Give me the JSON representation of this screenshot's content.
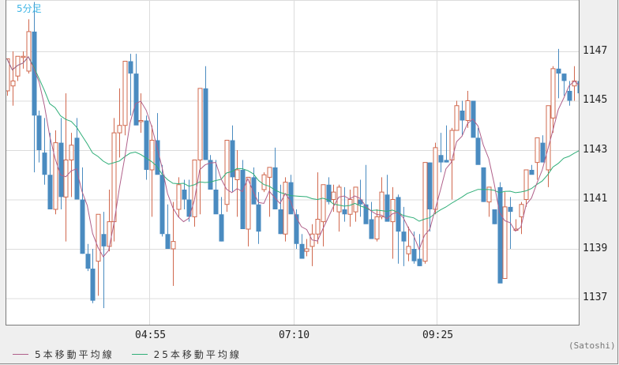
{
  "chart": {
    "timeframe_label": "5分足",
    "credit": "(Satoshi)",
    "colors": {
      "up": "#d0684e",
      "down": "#4a8bc0",
      "ma5": "#b0608a",
      "ma25": "#2fae78",
      "grid": "#dcdcdc",
      "timeframe": "#3fb6e6"
    },
    "y_axis": {
      "ticks": [
        "1147",
        "1145",
        "1143",
        "1141",
        "1139",
        "1137"
      ]
    },
    "x_axis": {
      "ticks": [
        "04:55",
        "07:10",
        "09:25"
      ]
    },
    "legend": [
      {
        "label": "5本移動平均線",
        "color": "#b0608a"
      },
      {
        "label": "25本移動平均線",
        "color": "#2fae78"
      }
    ]
  },
  "chart_data": {
    "type": "candlestick",
    "title": "5分足",
    "xlabel": "",
    "ylabel": "",
    "ylim": [
      1135.9,
      1149.1
    ],
    "y_ticks": [
      1137,
      1139,
      1141,
      1143,
      1145,
      1147
    ],
    "x_tick_labels": [
      "04:55",
      "07:10",
      "09:25"
    ],
    "grid": true,
    "legend_position": "bottom",
    "series": [
      {
        "name": "5本移動平均線",
        "type": "line",
        "period": 5
      },
      {
        "name": "25本移動平均線",
        "type": "line",
        "period": 25
      }
    ],
    "ohlc": [
      [
        1145.4,
        1146.6,
        1145.2,
        1146.7
      ],
      [
        1145.6,
        1147.0,
        1144.8,
        1145.8
      ],
      [
        1146.0,
        1146.8,
        1145.8,
        1146.8
      ],
      [
        1146.8,
        1147.0,
        1146.3,
        1146.8
      ],
      [
        1146.2,
        1148.3,
        1146.1,
        1147.8
      ],
      [
        1147.8,
        1149.0,
        1142.1,
        1144.4
      ],
      [
        1144.4,
        1144.6,
        1142.5,
        1143.0
      ],
      [
        1142.9,
        1144.3,
        1141.6,
        1142.0
      ],
      [
        1142.0,
        1143.7,
        1140.6,
        1140.6
      ],
      [
        1140.6,
        1143.8,
        1140.4,
        1143.3
      ],
      [
        1143.3,
        1144.3,
        1140.6,
        1141.1
      ],
      [
        1141.1,
        1145.3,
        1139.3,
        1142.6
      ],
      [
        1142.6,
        1143.7,
        1141.1,
        1143.2
      ],
      [
        1143.5,
        1144.3,
        1141.2,
        1141.0
      ],
      [
        1141.0,
        1142.3,
        1138.8,
        1138.8
      ],
      [
        1138.8,
        1139.2,
        1138.1,
        1138.2
      ],
      [
        1138.2,
        1139.0,
        1136.8,
        1136.9
      ],
      [
        1138.5,
        1139.2,
        1137.1,
        1140.4
      ],
      [
        1139.6,
        1140.5,
        1136.6,
        1139.1
      ],
      [
        1139.1,
        1141.4,
        1138.9,
        1140.1
      ],
      [
        1140.1,
        1144.3,
        1139.3,
        1143.7
      ],
      [
        1143.7,
        1145.5,
        1142.7,
        1144.0
      ],
      [
        1144.0,
        1146.3,
        1143.6,
        1146.6
      ],
      [
        1146.6,
        1146.9,
        1144.4,
        1146.1
      ],
      [
        1146.1,
        1146.9,
        1144.5,
        1144.0
      ],
      [
        1144.2,
        1145.3,
        1143.7,
        1144.2
      ],
      [
        1144.2,
        1144.4,
        1141.8,
        1142.2
      ],
      [
        1142.2,
        1144.0,
        1140.3,
        1143.4
      ],
      [
        1143.4,
        1144.5,
        1142.1,
        1142.0
      ],
      [
        1142.0,
        1142.4,
        1139.5,
        1139.6
      ],
      [
        1139.6,
        1140.8,
        1139.1,
        1139.0
      ],
      [
        1139.0,
        1140.9,
        1137.5,
        1139.3
      ],
      [
        1140.6,
        1141.9,
        1140.3,
        1141.6
      ],
      [
        1141.4,
        1141.8,
        1140.6,
        1141.0
      ],
      [
        1141.0,
        1141.8,
        1140.1,
        1140.3
      ],
      [
        1140.3,
        1141.6,
        1139.9,
        1142.6
      ],
      [
        1142.6,
        1143.3,
        1140.4,
        1145.5
      ],
      [
        1145.5,
        1146.4,
        1143.0,
        1142.6
      ],
      [
        1142.6,
        1142.8,
        1141.5,
        1141.4
      ],
      [
        1141.4,
        1142.6,
        1141.3,
        1140.4
      ],
      [
        1140.4,
        1141.1,
        1139.3,
        1139.3
      ],
      [
        1140.8,
        1142.3,
        1140.5,
        1143.4
      ],
      [
        1143.4,
        1144.0,
        1141.3,
        1141.9
      ],
      [
        1141.8,
        1143.0,
        1140.3,
        1142.2
      ],
      [
        1142.2,
        1142.6,
        1140.0,
        1139.8
      ],
      [
        1139.8,
        1141.6,
        1139.1,
        1141.9
      ],
      [
        1141.9,
        1142.3,
        1140.9,
        1140.8
      ],
      [
        1140.8,
        1141.3,
        1139.2,
        1139.7
      ],
      [
        1141.4,
        1142.1,
        1141.3,
        1142.0
      ],
      [
        1141.9,
        1142.3,
        1140.3,
        1142.3
      ],
      [
        1142.3,
        1143.1,
        1141.0,
        1140.6
      ],
      [
        1140.6,
        1141.6,
        1139.6,
        1139.6
      ],
      [
        1139.6,
        1141.9,
        1139.3,
        1141.7
      ],
      [
        1141.7,
        1142.0,
        1140.8,
        1140.4
      ],
      [
        1140.4,
        1140.6,
        1139.0,
        1139.2
      ],
      [
        1139.2,
        1139.6,
        1138.6,
        1138.6
      ],
      [
        1138.9,
        1139.4,
        1138.7,
        1139.0
      ],
      [
        1139.1,
        1140.0,
        1138.3,
        1139.6
      ],
      [
        1139.6,
        1142.1,
        1139.2,
        1140.2
      ],
      [
        1140.1,
        1140.9,
        1139.1,
        1141.6
      ],
      [
        1141.6,
        1141.9,
        1140.8,
        1140.9
      ],
      [
        1141.0,
        1141.6,
        1140.5,
        1141.3
      ],
      [
        1140.5,
        1141.6,
        1139.7,
        1141.5
      ],
      [
        1140.6,
        1141.5,
        1140.1,
        1140.4
      ],
      [
        1140.4,
        1141.4,
        1139.9,
        1141.0
      ],
      [
        1140.5,
        1141.3,
        1140.1,
        1141.5
      ],
      [
        1141.0,
        1141.8,
        1140.3,
        1140.8
      ],
      [
        1140.8,
        1142.4,
        1140.6,
        1140.0
      ],
      [
        1140.2,
        1140.9,
        1139.5,
        1139.4
      ],
      [
        1139.4,
        1140.6,
        1139.3,
        1140.3
      ],
      [
        1140.3,
        1141.9,
        1140.2,
        1141.3
      ],
      [
        1141.2,
        1142.0,
        1140.6,
        1140.1
      ],
      [
        1140.1,
        1141.5,
        1138.6,
        1141.0
      ],
      [
        1141.1,
        1141.2,
        1138.4,
        1139.7
      ],
      [
        1139.7,
        1140.7,
        1138.3,
        1139.3
      ],
      [
        1138.8,
        1139.9,
        1138.5,
        1139.1
      ],
      [
        1139.0,
        1139.7,
        1138.4,
        1138.5
      ],
      [
        1138.6,
        1139.6,
        1138.3,
        1138.3
      ],
      [
        1138.5,
        1142.5,
        1138.4,
        1142.5
      ],
      [
        1142.5,
        1142.5,
        1139.7,
        1140.6
      ],
      [
        1140.6,
        1143.3,
        1140.4,
        1143.1
      ],
      [
        1142.8,
        1143.7,
        1142.1,
        1142.5
      ],
      [
        1142.6,
        1144.0,
        1142.5,
        1142.5
      ],
      [
        1142.6,
        1143.9,
        1141.0,
        1143.8
      ],
      [
        1143.8,
        1145.0,
        1143.8,
        1144.8
      ],
      [
        1144.6,
        1145.0,
        1143.6,
        1144.2
      ],
      [
        1144.2,
        1145.4,
        1143.9,
        1145.0
      ],
      [
        1145.0,
        1145.0,
        1143.8,
        1143.5
      ],
      [
        1143.5,
        1143.9,
        1142.6,
        1142.4
      ],
      [
        1142.3,
        1142.3,
        1140.9,
        1140.9
      ],
      [
        1140.9,
        1141.4,
        1140.3,
        1141.5
      ],
      [
        1140.6,
        1140.6,
        1140.0,
        1140.0
      ],
      [
        1141.5,
        1141.7,
        1138.2,
        1137.6
      ],
      [
        1137.8,
        1141.3,
        1137.8,
        1140.7
      ],
      [
        1140.7,
        1141.1,
        1139.0,
        1140.5
      ],
      [
        1139.8,
        1140.2,
        1139.8,
        1139.8
      ],
      [
        1140.3,
        1140.9,
        1139.6,
        1140.8
      ],
      [
        1141.0,
        1142.2,
        1140.7,
        1142.2
      ],
      [
        1142.2,
        1142.4,
        1142.1,
        1142.0
      ],
      [
        1142.5,
        1143.1,
        1141.8,
        1143.5
      ],
      [
        1143.3,
        1143.6,
        1142.6,
        1142.5
      ],
      [
        1142.2,
        1143.3,
        1141.5,
        1144.8
      ],
      [
        1144.3,
        1146.4,
        1143.7,
        1146.3
      ],
      [
        1146.3,
        1147.1,
        1145.1,
        1146.1
      ],
      [
        1146.1,
        1146.1,
        1145.2,
        1145.8
      ],
      [
        1145.4,
        1145.8,
        1144.8,
        1145.0
      ],
      [
        1145.6,
        1146.4,
        1145.0,
        1145.8
      ],
      [
        1145.8,
        1145.9,
        1145.1,
        1145.3
      ]
    ]
  }
}
